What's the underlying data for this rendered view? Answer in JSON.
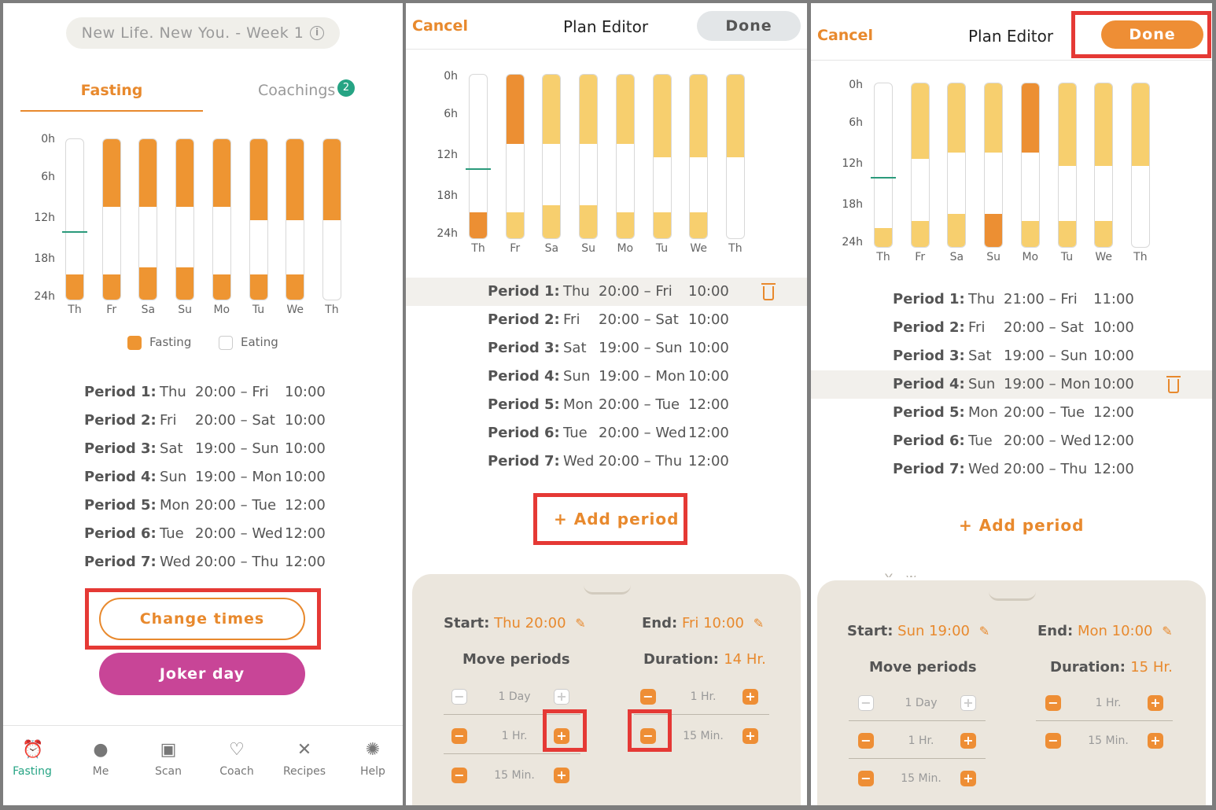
{
  "colors": {
    "fasting": "#ee9532",
    "fasting_light": "#f7cf6e",
    "fasting_dark": "#ec8f33",
    "eating": "#ffffff",
    "accent": "#e8892d",
    "joker": "#c84597",
    "teal": "#26a484"
  },
  "y_ticks": [
    "0h",
    "6h",
    "12h",
    "18h",
    "24h"
  ],
  "days": [
    "Th",
    "Fr",
    "Sa",
    "Su",
    "Mo",
    "Tu",
    "We",
    "Th"
  ],
  "panel1": {
    "week_title": "New Life. New You. - Week 1",
    "info_icon": "ⓘ",
    "tab_fasting": "Fasting",
    "tab_coachings": "Coachings",
    "coachings_badge": "2",
    "legend_fasting": "Fasting",
    "legend_eating": "Eating",
    "periods": [
      {
        "label": "Period 1:",
        "day": "Thu",
        "times": "20:00 – Fri",
        "end": "10:00"
      },
      {
        "label": "Period 2:",
        "day": "Fri",
        "times": "20:00 – Sat",
        "end": "10:00"
      },
      {
        "label": "Period 3:",
        "day": "Sat",
        "times": "19:00 – Sun",
        "end": "10:00"
      },
      {
        "label": "Period 4:",
        "day": "Sun",
        "times": "19:00 – Mon",
        "end": "10:00"
      },
      {
        "label": "Period 5:",
        "day": "Mon",
        "times": "20:00 – Tue",
        "end": "12:00"
      },
      {
        "label": "Period 6:",
        "day": "Tue",
        "times": "20:00 – Wed",
        "end": "12:00"
      },
      {
        "label": "Period 7:",
        "day": "Wed",
        "times": "20:00 – Thu",
        "end": "12:00"
      }
    ],
    "change_times": "Change times",
    "joker_day": "Joker day",
    "nav": [
      {
        "label": "Fasting",
        "icon": "alarm-clock-icon",
        "glyph": "⏰"
      },
      {
        "label": "Me",
        "icon": "user-icon",
        "glyph": "●"
      },
      {
        "label": "Scan",
        "icon": "camera-icon",
        "glyph": "▣"
      },
      {
        "label": "Coach",
        "icon": "heart-icon",
        "glyph": "♡"
      },
      {
        "label": "Recipes",
        "icon": "cutlery-icon",
        "glyph": "✕"
      },
      {
        "label": "Help",
        "icon": "lightbulb-icon",
        "glyph": "✺"
      }
    ]
  },
  "panel2": {
    "cancel": "Cancel",
    "title": "Plan Editor",
    "done": "Done",
    "periods": [
      {
        "label": "Period 1:",
        "day": "Thu",
        "times": "20:00 – Fri",
        "end": "10:00"
      },
      {
        "label": "Period 2:",
        "day": "Fri",
        "times": "20:00 – Sat",
        "end": "10:00"
      },
      {
        "label": "Period 3:",
        "day": "Sat",
        "times": "19:00 – Sun",
        "end": "10:00"
      },
      {
        "label": "Period 4:",
        "day": "Sun",
        "times": "19:00 – Mon",
        "end": "10:00"
      },
      {
        "label": "Period 5:",
        "day": "Mon",
        "times": "20:00 – Tue",
        "end": "12:00"
      },
      {
        "label": "Period 6:",
        "day": "Tue",
        "times": "20:00 – Wed",
        "end": "12:00"
      },
      {
        "label": "Period 7:",
        "day": "Wed",
        "times": "20:00 – Thu",
        "end": "12:00"
      }
    ],
    "add_period": "+ Add period",
    "start_label": "Start:",
    "start_value": "Thu 20:00",
    "end_label": "End:",
    "end_value": "Fri 10:00",
    "move_periods": "Move periods",
    "duration_label": "Duration:",
    "duration_value": "14 Hr.",
    "step_day": "1 Day",
    "step_hr": "1 Hr.",
    "step_min": "15 Min.",
    "minus": "−",
    "plus": "+"
  },
  "panel3": {
    "cancel": "Cancel",
    "title": "Plan Editor",
    "done": "Done",
    "periods": [
      {
        "label": "Period 1:",
        "day": "Thu",
        "times": "21:00 – Fri",
        "end": "11:00"
      },
      {
        "label": "Period 2:",
        "day": "Fri",
        "times": "20:00 – Sat",
        "end": "10:00"
      },
      {
        "label": "Period 3:",
        "day": "Sat",
        "times": "19:00 – Sun",
        "end": "10:00"
      },
      {
        "label": "Period 4:",
        "day": "Sun",
        "times": "19:00 – Mon",
        "end": "10:00"
      },
      {
        "label": "Period 5:",
        "day": "Mon",
        "times": "20:00 – Tue",
        "end": "12:00"
      },
      {
        "label": "Period 6:",
        "day": "Tue",
        "times": "20:00 – Wed",
        "end": "12:00"
      },
      {
        "label": "Period 7:",
        "day": "Wed",
        "times": "20:00 – Thu",
        "end": "12:00"
      }
    ],
    "add_period": "+ Add period",
    "partial_text": "Y... w...",
    "start_label": "Start:",
    "start_value": "Sun 19:00",
    "end_label": "End:",
    "end_value": "Mon 10:00",
    "move_periods": "Move periods",
    "duration_label": "Duration:",
    "duration_value": "15 Hr.",
    "step_day": "1 Day",
    "step_hr": "1 Hr.",
    "step_min": "15 Min.",
    "minus": "−",
    "plus": "+"
  },
  "chart_data": [
    {
      "type": "bar",
      "title": "",
      "y_ticks": [
        "0h",
        "6h",
        "12h",
        "18h",
        "24h"
      ],
      "categories": [
        "Th",
        "Fr",
        "Sa",
        "Su",
        "Mo",
        "Tu",
        "We",
        "Th"
      ],
      "series": [
        {
          "name": "Fasting",
          "segments": [
            [
              [
                20,
                24
              ]
            ],
            [
              [
                0,
                10
              ],
              [
                20,
                24
              ]
            ],
            [
              [
                0,
                10
              ],
              [
                19,
                24
              ]
            ],
            [
              [
                0,
                10
              ],
              [
                19,
                24
              ]
            ],
            [
              [
                0,
                10
              ],
              [
                20,
                24
              ]
            ],
            [
              [
                0,
                12
              ],
              [
                20,
                24
              ]
            ],
            [
              [
                0,
                12
              ],
              [
                20,
                24
              ]
            ],
            [
              [
                0,
                12
              ]
            ]
          ]
        }
      ],
      "legend": [
        "Fasting",
        "Eating"
      ]
    },
    {
      "type": "bar",
      "title": "",
      "y_ticks": [
        "0h",
        "6h",
        "12h",
        "18h",
        "24h"
      ],
      "categories": [
        "Th",
        "Fr",
        "Sa",
        "Su",
        "Mo",
        "Tu",
        "We",
        "Th"
      ],
      "series": [
        {
          "name": "Fasting",
          "segments": [
            [
              [
                20,
                24
              ]
            ],
            [
              [
                0,
                10
              ],
              [
                20,
                24
              ]
            ],
            [
              [
                0,
                10
              ],
              [
                19,
                24
              ]
            ],
            [
              [
                0,
                10
              ],
              [
                19,
                24
              ]
            ],
            [
              [
                0,
                10
              ],
              [
                20,
                24
              ]
            ],
            [
              [
                0,
                12
              ],
              [
                20,
                24
              ]
            ],
            [
              [
                0,
                12
              ],
              [
                20,
                24
              ]
            ],
            [
              [
                0,
                12
              ]
            ]
          ]
        }
      ]
    },
    {
      "type": "bar",
      "title": "",
      "y_ticks": [
        "0h",
        "6h",
        "12h",
        "18h",
        "24h"
      ],
      "categories": [
        "Th",
        "Fr",
        "Sa",
        "Su",
        "Mo",
        "Tu",
        "We",
        "Th"
      ],
      "series": [
        {
          "name": "Fasting",
          "segments": [
            [
              [
                21,
                24
              ]
            ],
            [
              [
                0,
                11
              ],
              [
                20,
                24
              ]
            ],
            [
              [
                0,
                10
              ],
              [
                19,
                24
              ]
            ],
            [
              [
                0,
                10
              ],
              [
                19,
                24
              ]
            ],
            [
              [
                0,
                10
              ],
              [
                20,
                24
              ]
            ],
            [
              [
                0,
                12
              ],
              [
                20,
                24
              ]
            ],
            [
              [
                0,
                12
              ],
              [
                20,
                24
              ]
            ],
            [
              [
                0,
                12
              ]
            ]
          ]
        }
      ]
    }
  ]
}
